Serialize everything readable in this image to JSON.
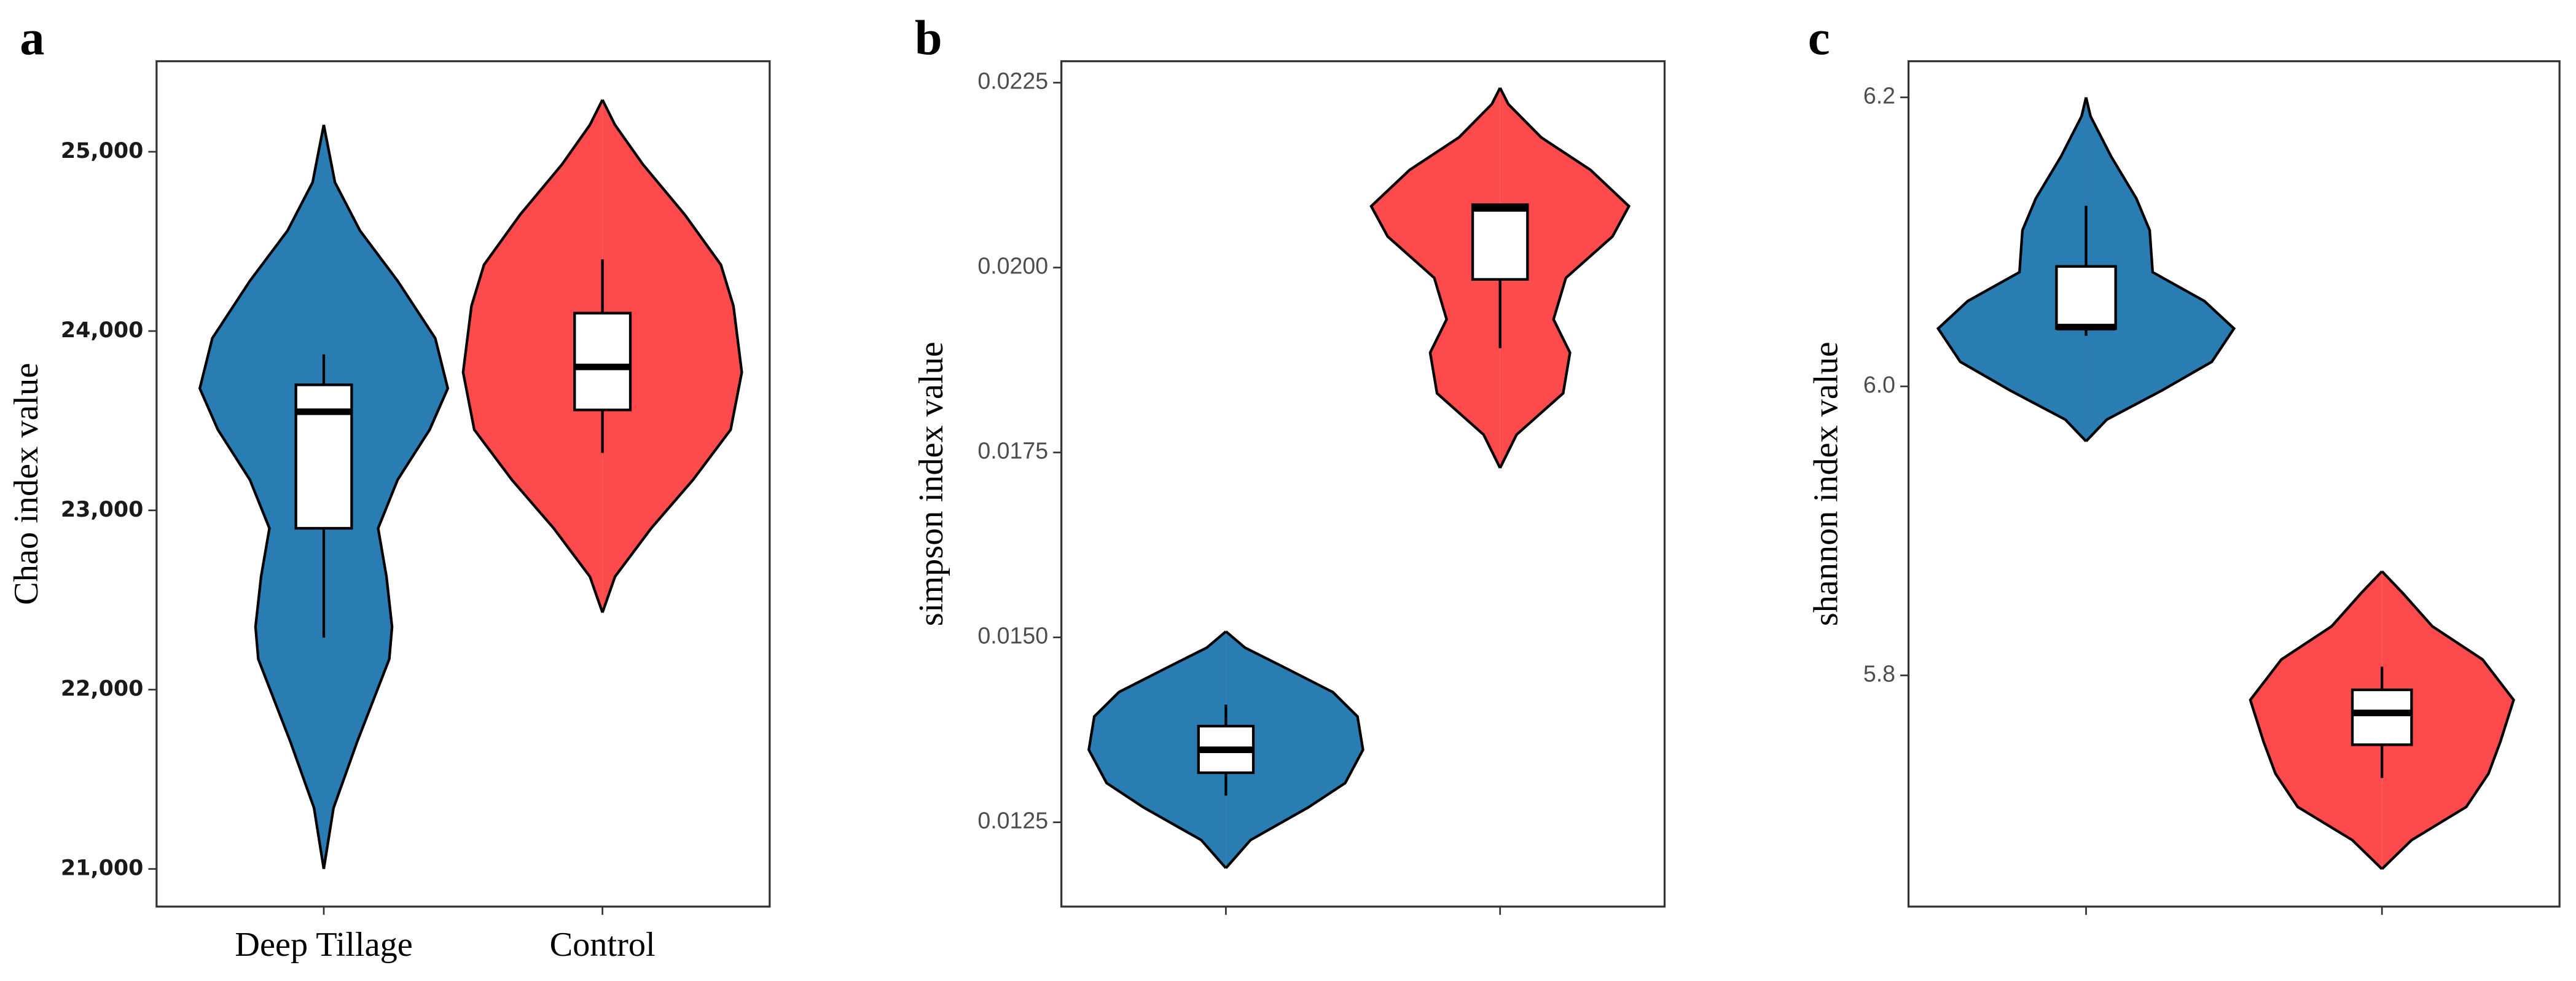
{
  "chart_data": [
    {
      "type": "violin",
      "panel": "a",
      "ylabel": "Chao index value",
      "categories": [
        "Deep Tillage",
        "Control"
      ],
      "colors": [
        "#2a7db3",
        "#fd4a4c"
      ],
      "ylim": [
        20790,
        25505
      ],
      "yticks": [
        {
          "value": 21000,
          "label": "21,000"
        },
        {
          "value": 22000,
          "label": "22,000"
        },
        {
          "value": 23000,
          "label": "23,000"
        },
        {
          "value": 24000,
          "label": "24,000"
        },
        {
          "value": 25000,
          "label": "25,000"
        }
      ],
      "groups": [
        {
          "violin": {
            "y": [
              21000,
              21340,
              21710,
              22170,
              22350,
              22630,
              22900,
              23170,
              23450,
              23680,
              23960,
              24280,
              24560,
              24830,
              25150
            ],
            "density": [
              0,
              0.07,
              0.24,
              0.47,
              0.49,
              0.45,
              0.39,
              0.53,
              0.76,
              0.89,
              0.8,
              0.53,
              0.26,
              0.08,
              0
            ]
          },
          "box": {
            "min": 22290,
            "q1": 22900,
            "median": 23550,
            "q3": 23700,
            "max": 23870
          }
        },
        {
          "violin": {
            "y": [
              22430,
              22630,
              22900,
              23170,
              23450,
              23770,
              24140,
              24370,
              24650,
              24930,
              25150,
              25290
            ],
            "density": [
              0,
              0.09,
              0.35,
              0.65,
              0.92,
              1,
              0.94,
              0.85,
              0.59,
              0.29,
              0.09,
              0
            ]
          },
          "box": {
            "min": 23320,
            "q1": 23560,
            "median": 23800,
            "q3": 24100,
            "max": 24400
          }
        }
      ]
    },
    {
      "type": "violin",
      "panel": "b",
      "ylabel": "simpson index value",
      "categories": [
        null,
        null
      ],
      "colors": [
        "#2a7db3",
        "#fd4a4c"
      ],
      "ylim": [
        0.01136,
        0.02279
      ],
      "yticks": [
        0.0125,
        {
          "value": 0.015,
          "label": "0.0150"
        },
        0.0175,
        {
          "value": 0.02,
          "label": "0.0200"
        },
        0.0225
      ],
      "groups": [
        {
          "violin": {
            "y": [
              0.01188,
              0.01226,
              0.0127,
              0.01303,
              0.01348,
              0.01393,
              0.01426,
              0.0146,
              0.01486,
              0.01508
            ],
            "density": [
              0,
              0.18,
              0.6,
              0.87,
              1,
              0.96,
              0.78,
              0.42,
              0.14,
              0
            ]
          },
          "box": {
            "min": 0.01286,
            "q1": 0.01317,
            "median": 0.01348,
            "q3": 0.0138,
            "max": 0.01409
          }
        },
        {
          "violin": {
            "y": [
              0.01729,
              0.01774,
              0.0183,
              0.01885,
              0.0193,
              0.01986,
              0.02042,
              0.02083,
              0.02132,
              0.02176,
              0.02221,
              0.02243
            ],
            "density": [
              0,
              0.12,
              0.46,
              0.51,
              0.39,
              0.48,
              0.82,
              0.94,
              0.66,
              0.3,
              0.06,
              0
            ]
          },
          "box": {
            "min": 0.01891,
            "q1": 0.01984,
            "median": 0.0208,
            "q3": 0.02085,
            "max": 0.02085
          }
        }
      ]
    },
    {
      "type": "violin",
      "panel": "c",
      "ylabel": "shannon index value",
      "categories": [
        null,
        null
      ],
      "colors": [
        "#2a7db3",
        "#fd4a4c"
      ],
      "ylim": [
        5.64,
        6.225
      ],
      "yticks": [
        5.8,
        {
          "value": 6.0,
          "label": "6.0"
        },
        6.2
      ],
      "groups": [
        {
          "violin": {
            "y": [
              5.962,
              5.977,
              5.997,
              6.017,
              6.04,
              6.059,
              6.079,
              6.108,
              6.13,
              6.159,
              6.187,
              6.2
            ],
            "density": [
              0,
              0.14,
              0.51,
              0.85,
              1,
              0.8,
              0.45,
              0.43,
              0.34,
              0.17,
              0.03,
              0
            ]
          },
          "box": {
            "min": 6.035,
            "q1": 6.04,
            "median": 6.041,
            "q3": 6.083,
            "max": 6.125
          }
        },
        {
          "violin": {
            "y": [
              5.666,
              5.686,
              5.709,
              5.732,
              5.754,
              5.783,
              5.811,
              5.834,
              5.857,
              5.872
            ],
            "density": [
              0,
              0.2,
              0.57,
              0.72,
              0.8,
              0.89,
              0.68,
              0.34,
              0.14,
              0
            ]
          },
          "box": {
            "min": 5.729,
            "q1": 5.752,
            "median": 5.774,
            "q3": 5.79,
            "max": 5.806
          }
        }
      ]
    }
  ]
}
